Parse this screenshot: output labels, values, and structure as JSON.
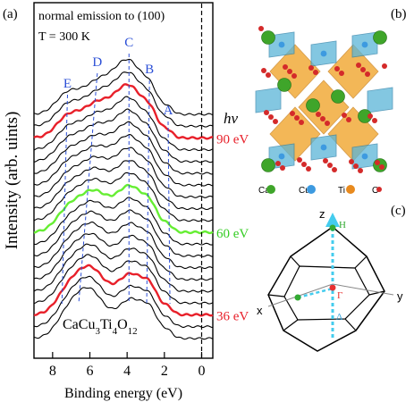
{
  "panels": {
    "a": {
      "label": "(a)",
      "annotation_line1": "normal emission to (100)",
      "annotation_line2": "T = 300 K",
      "formula": {
        "base": "CaCu",
        "sub1": "3",
        "mid": "Ti",
        "sub2": "4",
        "mid2": "O",
        "sub3": "12"
      },
      "hv_label": "hv",
      "colors": {
        "red": "#e8202a",
        "green": "#66ee33",
        "black": "#000000",
        "peak_label": "#2b4fd6",
        "dashed": "#2b4fd6"
      }
    },
    "b": {
      "label": "(b)",
      "legend": [
        {
          "name": "Ca",
          "color": "#3fa52a"
        },
        {
          "name": "Cu",
          "color": "#3d9ae0"
        },
        {
          "name": "Ti",
          "color": "#e88a1e"
        },
        {
          "name": "O",
          "color": "#d42a2a"
        }
      ]
    },
    "c": {
      "label": "(c)",
      "axes": {
        "x": "x",
        "y": "y",
        "z": "z"
      },
      "points": {
        "H": "H",
        "Gamma": "Γ",
        "Delta": "Δ"
      },
      "colors": {
        "cyan": "#44ccee",
        "green": "#33aa33",
        "red": "#e83030"
      }
    }
  },
  "chart_data": {
    "type": "line",
    "title": "",
    "xlabel": "Binding energy (eV)",
    "ylabel": "Intensity (arb. uints)",
    "xlim": [
      9,
      -0.6
    ],
    "x_ticks": [
      "8",
      "6",
      "4",
      "2",
      "0"
    ],
    "x_tick_values": [
      8,
      6,
      4,
      2,
      0
    ],
    "fermi_level_marker": 0,
    "spectra_count": 20,
    "photon_energy_labels": [
      {
        "label": "90 eV",
        "spectrum_index": 2,
        "color": "#e8202a"
      },
      {
        "label": "60 eV",
        "spectrum_index": 10,
        "color": "#33cc22"
      },
      {
        "label": "36 eV",
        "spectrum_index": 17,
        "color": "#e8202a"
      }
    ],
    "highlighted_spectra": [
      {
        "index": 2,
        "color": "red"
      },
      {
        "index": 10,
        "color": "green"
      },
      {
        "index": 17,
        "color": "red"
      }
    ],
    "peak_labels": [
      {
        "label": "A",
        "energy": 1.8
      },
      {
        "label": "B",
        "energy": 2.8
      },
      {
        "label": "C",
        "energy": 3.9
      },
      {
        "label": "D",
        "energy": 5.6
      },
      {
        "label": "E",
        "energy": 7.2
      }
    ]
  }
}
